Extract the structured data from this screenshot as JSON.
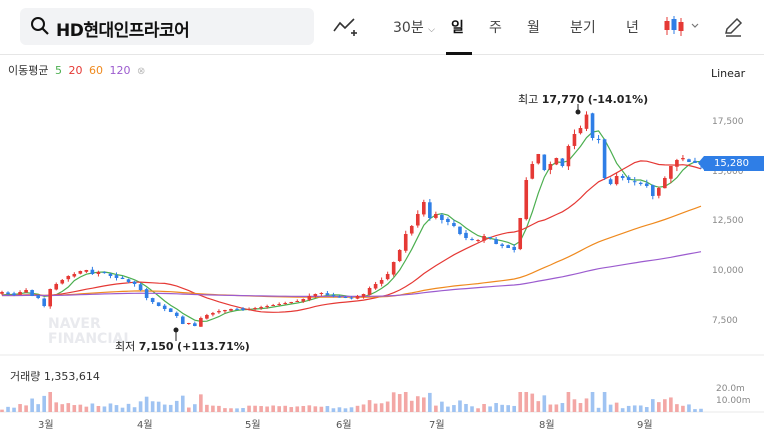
{
  "search": {
    "query": "HD현대인프라코어"
  },
  "toolbar": {
    "interval": "30분",
    "periods": [
      "일",
      "주",
      "월",
      "분기",
      "년"
    ]
  },
  "ma_legend": {
    "label": "이동평균",
    "periods": [
      "5",
      "20",
      "60",
      "120"
    ],
    "colors": [
      "#4caf50",
      "#e53935",
      "#ef8a1f",
      "#9c5ccf"
    ]
  },
  "scale_mode": "Linear",
  "y_axis_labels": [
    "17,500",
    "15,000",
    "12,500",
    "10,000",
    "7,500"
  ],
  "current_price": "15,280",
  "high_annotation": {
    "label": "최고",
    "value": "17,770",
    "change": "(-14.01%)"
  },
  "low_annotation": {
    "label": "최저",
    "value": "7,150",
    "change": "(+113.71%)"
  },
  "watermark": [
    "NAVER",
    "FINANCIAL"
  ],
  "volume": {
    "label": "거래량",
    "value": "1,353,614",
    "axis_labels": [
      "20.0m",
      "10.00m"
    ]
  },
  "x_axis_labels": [
    "3월",
    "4월",
    "5월",
    "6월",
    "7월",
    "8월",
    "9월"
  ],
  "chart_data": {
    "type": "candlestick",
    "y_ticks": [
      17500,
      15000,
      12500,
      10000,
      7500
    ],
    "closes": [
      8900,
      8800,
      8750,
      8900,
      9000,
      8700,
      8600,
      8200,
      9050,
      9300,
      9500,
      9700,
      9800,
      9950,
      10000,
      9800,
      9900,
      9850,
      9700,
      9600,
      9550,
      9400,
      9300,
      9000,
      8600,
      8400,
      8200,
      8050,
      7900,
      7700,
      7300,
      7350,
      7200,
      7600,
      7750,
      7850,
      7950,
      8000,
      8050,
      8050,
      8000,
      8050,
      8100,
      8150,
      8200,
      8250,
      8300,
      8350,
      8400,
      8450,
      8550,
      8700,
      8800,
      8850,
      8750,
      8700,
      8650,
      8600,
      8600,
      8700,
      8800,
      9100,
      9300,
      9500,
      9800,
      10400,
      11000,
      11800,
      12200,
      12800,
      13400,
      12600,
      12800,
      12500,
      12400,
      12200,
      11800,
      11600,
      11500,
      11500,
      11700,
      11600,
      11300,
      11200,
      11100,
      11000,
      12600,
      14500,
      15300,
      15800,
      15000,
      15300,
      15600,
      15200,
      16200,
      16800,
      17100,
      17770,
      16600,
      16500,
      14600,
      14300,
      14700,
      14600,
      14500,
      14400,
      14300,
      14200,
      13700,
      14100,
      14600,
      15200,
      15500,
      15600,
      15400,
      15350,
      15280
    ],
    "high": {
      "value": 17770,
      "label": "최고 17,770 (-14.01%)"
    },
    "low": {
      "value": 7150,
      "label": "최저 7,150 (+113.71%)"
    },
    "current": 15280,
    "ma_periods": [
      5,
      20,
      60,
      120
    ],
    "volume_label": "거래량 1,353,614",
    "volume_ticks": [
      "20.0m",
      "10.00m"
    ],
    "x_ticks": [
      "3월",
      "4월",
      "5월",
      "6월",
      "7월",
      "8월",
      "9월"
    ]
  }
}
